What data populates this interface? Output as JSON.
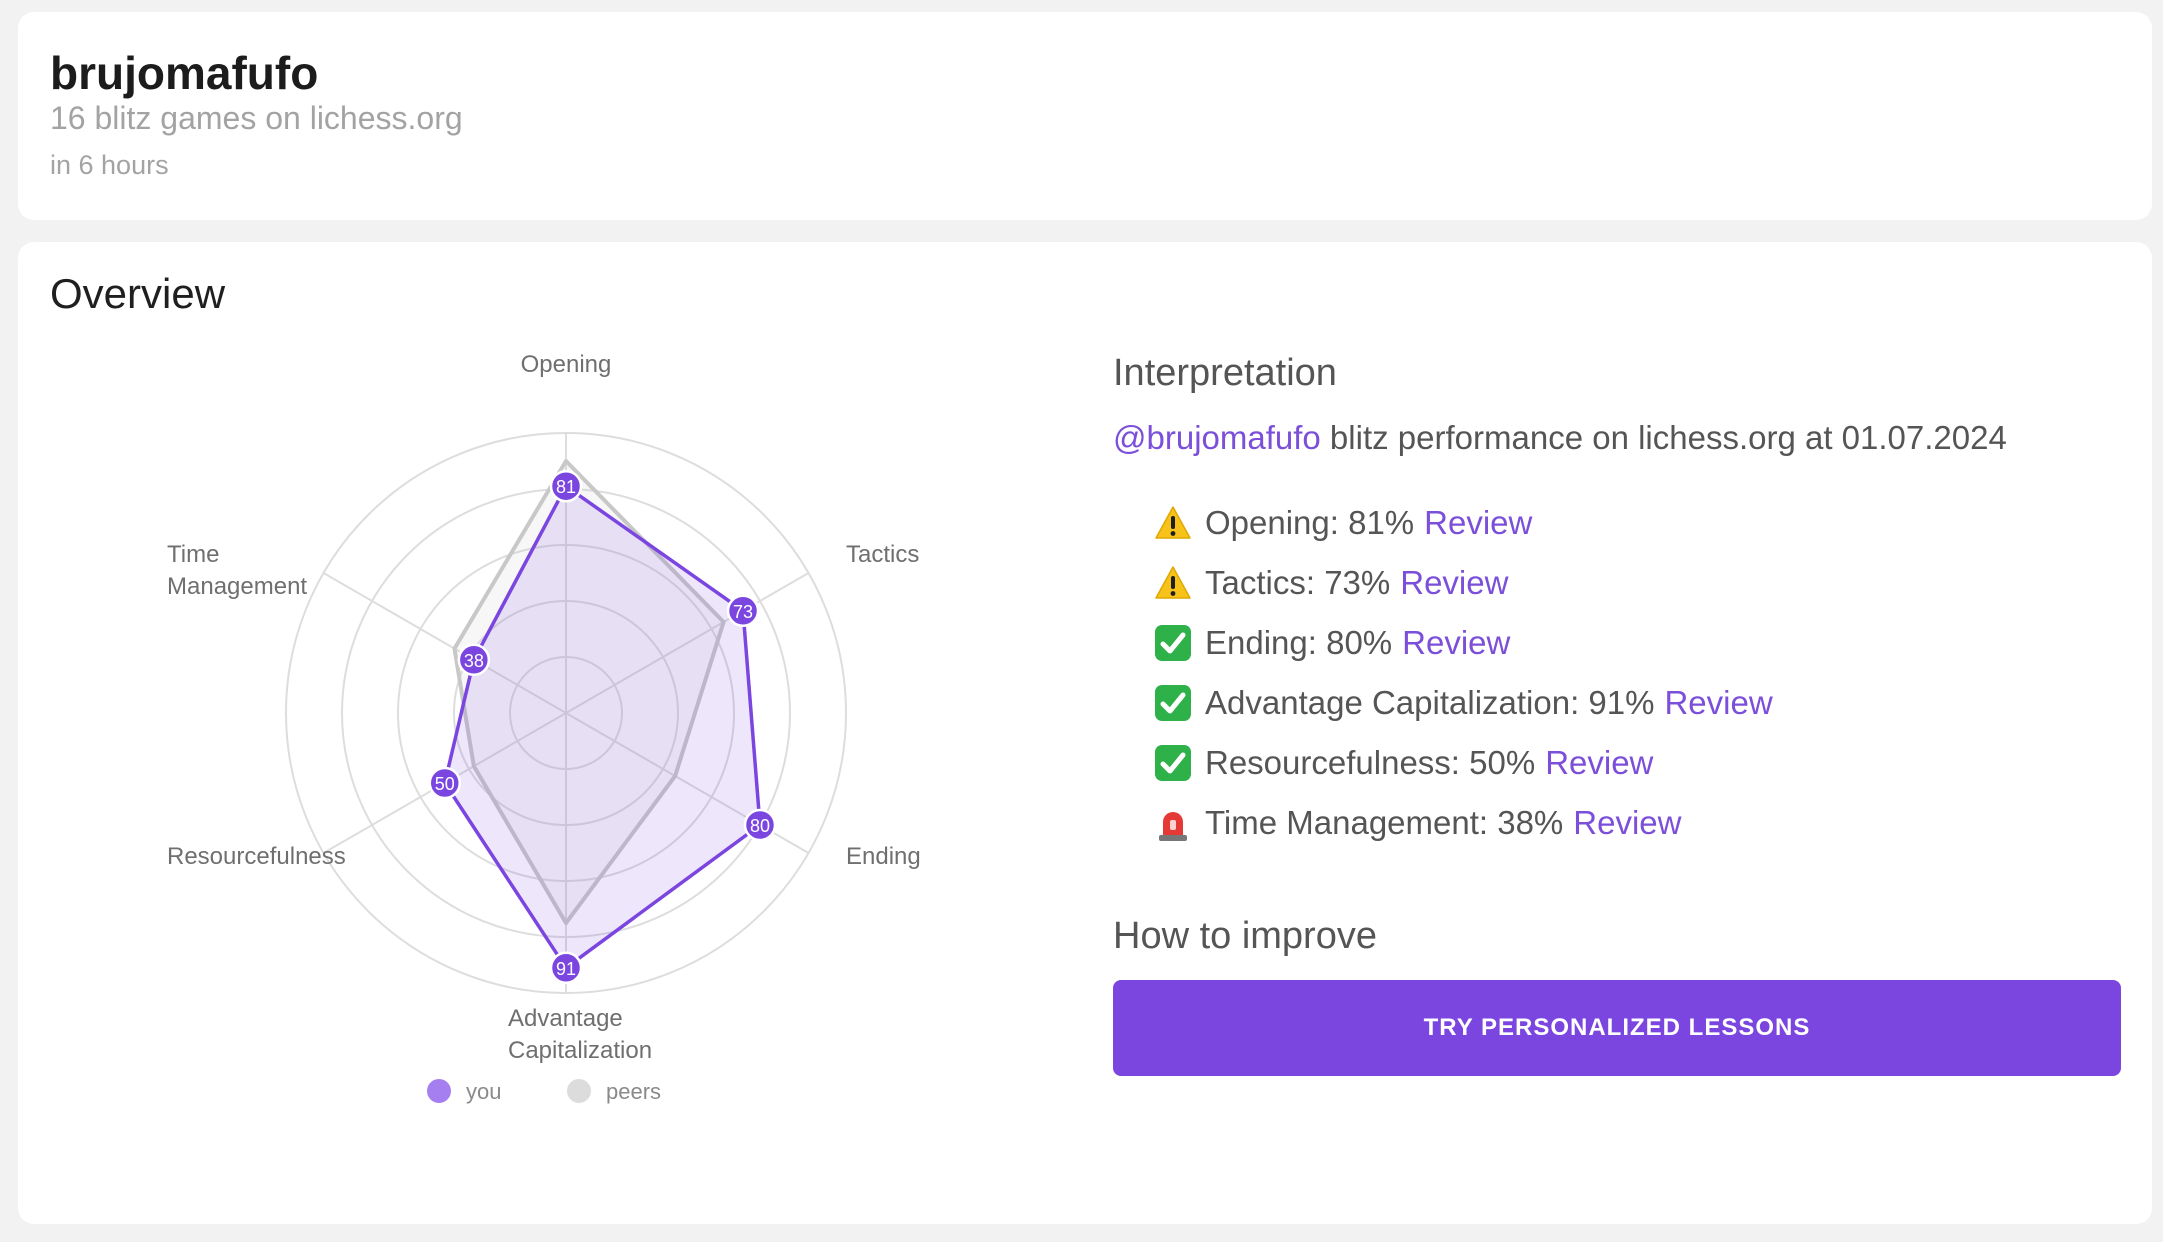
{
  "header": {
    "username": "brujomafufo",
    "subtitle": "16 blitz games on lichess.org",
    "time_ago": "in 6 hours"
  },
  "overview": {
    "title": "Overview"
  },
  "chart_data": {
    "type": "radar",
    "categories": [
      "Opening",
      "Tactics",
      "Ending",
      "Advantage Capitalization",
      "Resourcefulness",
      "Time Management"
    ],
    "series": [
      {
        "name": "you",
        "values": [
          81,
          73,
          80,
          91,
          50,
          38
        ]
      },
      {
        "name": "peers",
        "values": [
          90,
          65,
          45,
          75,
          38,
          46
        ]
      }
    ],
    "range": [
      0,
      100
    ],
    "grid": true,
    "legend": "bottom",
    "colors": {
      "you": "#7b45e0",
      "peers": "#c8c8c8"
    }
  },
  "interpretation": {
    "title": "Interpretation",
    "handle": "@brujomafufo",
    "line_rest": " blitz performance on lichess.org at 01.07.2024",
    "metrics": [
      {
        "icon": "warning-icon",
        "text": "Opening: 81%",
        "link": "Review"
      },
      {
        "icon": "warning-icon",
        "text": "Tactics: 73%",
        "link": "Review"
      },
      {
        "icon": "check-icon",
        "text": "Ending: 80%",
        "link": "Review"
      },
      {
        "icon": "check-icon",
        "text": "Advantage Capitalization: 91%",
        "link": "Review"
      },
      {
        "icon": "check-icon",
        "text": "Resourcefulness: 50%",
        "link": "Review"
      },
      {
        "icon": "siren-icon",
        "text": "Time Management: 38%",
        "link": "Review"
      }
    ]
  },
  "improve": {
    "title": "How to improve",
    "cta_label": "TRY PERSONALIZED LESSONS"
  }
}
